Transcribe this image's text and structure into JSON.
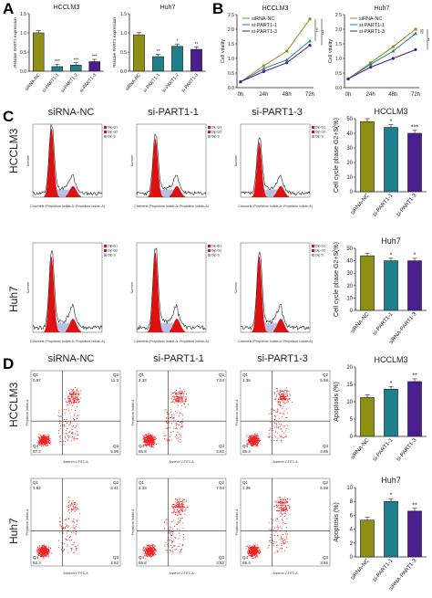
{
  "panels": {
    "A": "A",
    "B": "B",
    "C": "C",
    "D": "D"
  },
  "conditions": {
    "nc": "siRNA-NC",
    "p1": "si-PART1-1",
    "p3": "si-PART1-3"
  },
  "cell_lines": {
    "hcclm3": "HCCLM3",
    "huh7": "Huh7"
  },
  "colors": {
    "olive": "#8f8f17",
    "teal": "#1f7f8c",
    "purple": "#4a1e8c",
    "red": "#dd1111",
    "scatter": "#ee2222"
  },
  "flow_legend": [
    "Dip G1",
    "Dip G2",
    "Dip S"
  ],
  "flow_axis": {
    "x": "Channels (Propidium Iodide-A::Propidium Iodide-A)",
    "y": "Number"
  },
  "apop_axis": {
    "x": "Annexin V-FITC-A",
    "y": "Propidium Iodide-A"
  },
  "quadrants_hcclm3": [
    {
      "q1": "0.57",
      "q2": "11.3",
      "q3": "5.99",
      "q4": "87.2"
    },
    {
      "q1": "2.33",
      "q2": "7.04",
      "q3": "3.82",
      "q4": "86.8"
    },
    {
      "q1": "1.36",
      "q2": "5.58",
      "q3": "3.65",
      "q4": "89.4"
    }
  ],
  "quadrants_huh7": [
    {
      "q1": "1.82",
      "q2": "3.41",
      "q3": "2.62",
      "q4": "92.3"
    },
    {
      "q1": "2.33",
      "q2": "7.04",
      "q3": "3.82",
      "q4": "86.8"
    },
    {
      "q1": "1.36",
      "q2": "5.58",
      "q3": "3.65",
      "q4": "89.4"
    }
  ],
  "chart_data": [
    {
      "type": "bar",
      "title": "HCCLM3",
      "ylabel": "Relative PART1 expression",
      "categories": [
        "siRNA-NC",
        "si-PART1-1",
        "si-PART1-2",
        "si-PART1-3"
      ],
      "values": [
        1.0,
        0.12,
        0.16,
        0.25
      ],
      "ylim": [
        0,
        1.5
      ],
      "yticks": [
        "0.0",
        "0.5",
        "1.0",
        "1.5"
      ],
      "sig": [
        "",
        "***",
        "***",
        "***"
      ]
    },
    {
      "type": "bar",
      "title": "Huh7",
      "ylabel": "Relative PART1 expression",
      "categories": [
        "siRNA-NC",
        "si-PART1-1",
        "si-PART1-2",
        "si-PART1-3"
      ],
      "values": [
        0.95,
        0.38,
        0.65,
        0.57
      ],
      "ylim": [
        0,
        1.5
      ],
      "yticks": [
        "0.0",
        "0.5",
        "1.0",
        "1.5"
      ],
      "sig": [
        "",
        "**",
        "*",
        "**"
      ]
    },
    {
      "type": "line",
      "title": "HCCLM3",
      "ylabel": "Cell vitality",
      "x": [
        "0h",
        "24h",
        "48h",
        "72h"
      ],
      "ylim": [
        0,
        2.5
      ],
      "yticks": [
        "0.0",
        "0.5",
        "1.0",
        "1.5",
        "2.0",
        "2.5"
      ],
      "series": [
        {
          "name": "siRNA-NC",
          "values": [
            0.2,
            0.75,
            1.25,
            2.35
          ]
        },
        {
          "name": "si-PART1-1",
          "values": [
            0.2,
            0.65,
            0.95,
            1.6
          ]
        },
        {
          "name": "si-PART1-3",
          "values": [
            0.2,
            0.55,
            0.85,
            1.45
          ]
        }
      ],
      "sig": [
        "***",
        "***"
      ]
    },
    {
      "type": "line",
      "title": "Huh7",
      "ylabel": "Cell vitality",
      "x": [
        "0h",
        "24h",
        "48h",
        "72h"
      ],
      "ylim": [
        0,
        2.5
      ],
      "yticks": [
        "0.0",
        "0.5",
        "1.0",
        "1.5",
        "2.0",
        "2.5"
      ],
      "series": [
        {
          "name": "siRNA-NC",
          "values": [
            0.3,
            0.85,
            1.4,
            2.0
          ]
        },
        {
          "name": "si-PART1-1",
          "values": [
            0.3,
            0.8,
            1.25,
            1.85
          ]
        },
        {
          "name": "si-PART1-3",
          "values": [
            0.3,
            0.7,
            1.0,
            1.3
          ]
        }
      ],
      "sig": [
        "***",
        "**"
      ]
    },
    {
      "type": "bar",
      "title": "HCCLM3",
      "ylabel": "Cell cycle phase G2+S(%)",
      "categories": [
        "siRNA-NC",
        "si-PART1-1",
        "si-PART1-3"
      ],
      "values": [
        48,
        44,
        40
      ],
      "ylim": [
        0,
        50
      ],
      "yticks": [
        "0",
        "10",
        "20",
        "30",
        "40",
        "50"
      ],
      "sig": [
        "",
        "*",
        "***"
      ]
    },
    {
      "type": "bar",
      "title": "Huh7",
      "ylabel": "Cell cycle phase G2+S(%)",
      "categories": [
        "siRNA-NC",
        "si-PART1-1",
        "siRNA-PART1-3"
      ],
      "values": [
        44,
        40,
        40
      ],
      "ylim": [
        0,
        50
      ],
      "yticks": [
        "0",
        "10",
        "20",
        "30",
        "40",
        "50"
      ],
      "sig": [
        "",
        "*",
        "*"
      ]
    },
    {
      "type": "bar",
      "title": "HCCLM3",
      "ylabel": "Apoptosis (%)",
      "categories": [
        "siRNA-NC",
        "si-PART1-1",
        "si-PART1-3"
      ],
      "values": [
        11.2,
        13.6,
        15.8
      ],
      "ylim": [
        0,
        20
      ],
      "yticks": [
        "0",
        "5",
        "10",
        "15",
        "20"
      ],
      "sig": [
        "",
        "*",
        "**"
      ]
    },
    {
      "type": "bar",
      "title": "Huh7",
      "ylabel": "Apoptosis (%)",
      "categories": [
        "siRNA-NC",
        "si-PART1-1",
        "siRNA-PART1-3"
      ],
      "values": [
        5.3,
        8.0,
        6.6
      ],
      "ylim": [
        0,
        10
      ],
      "yticks": [
        "0",
        "2",
        "4",
        "6",
        "8",
        "10"
      ],
      "sig": [
        "",
        "*",
        "**"
      ]
    }
  ]
}
